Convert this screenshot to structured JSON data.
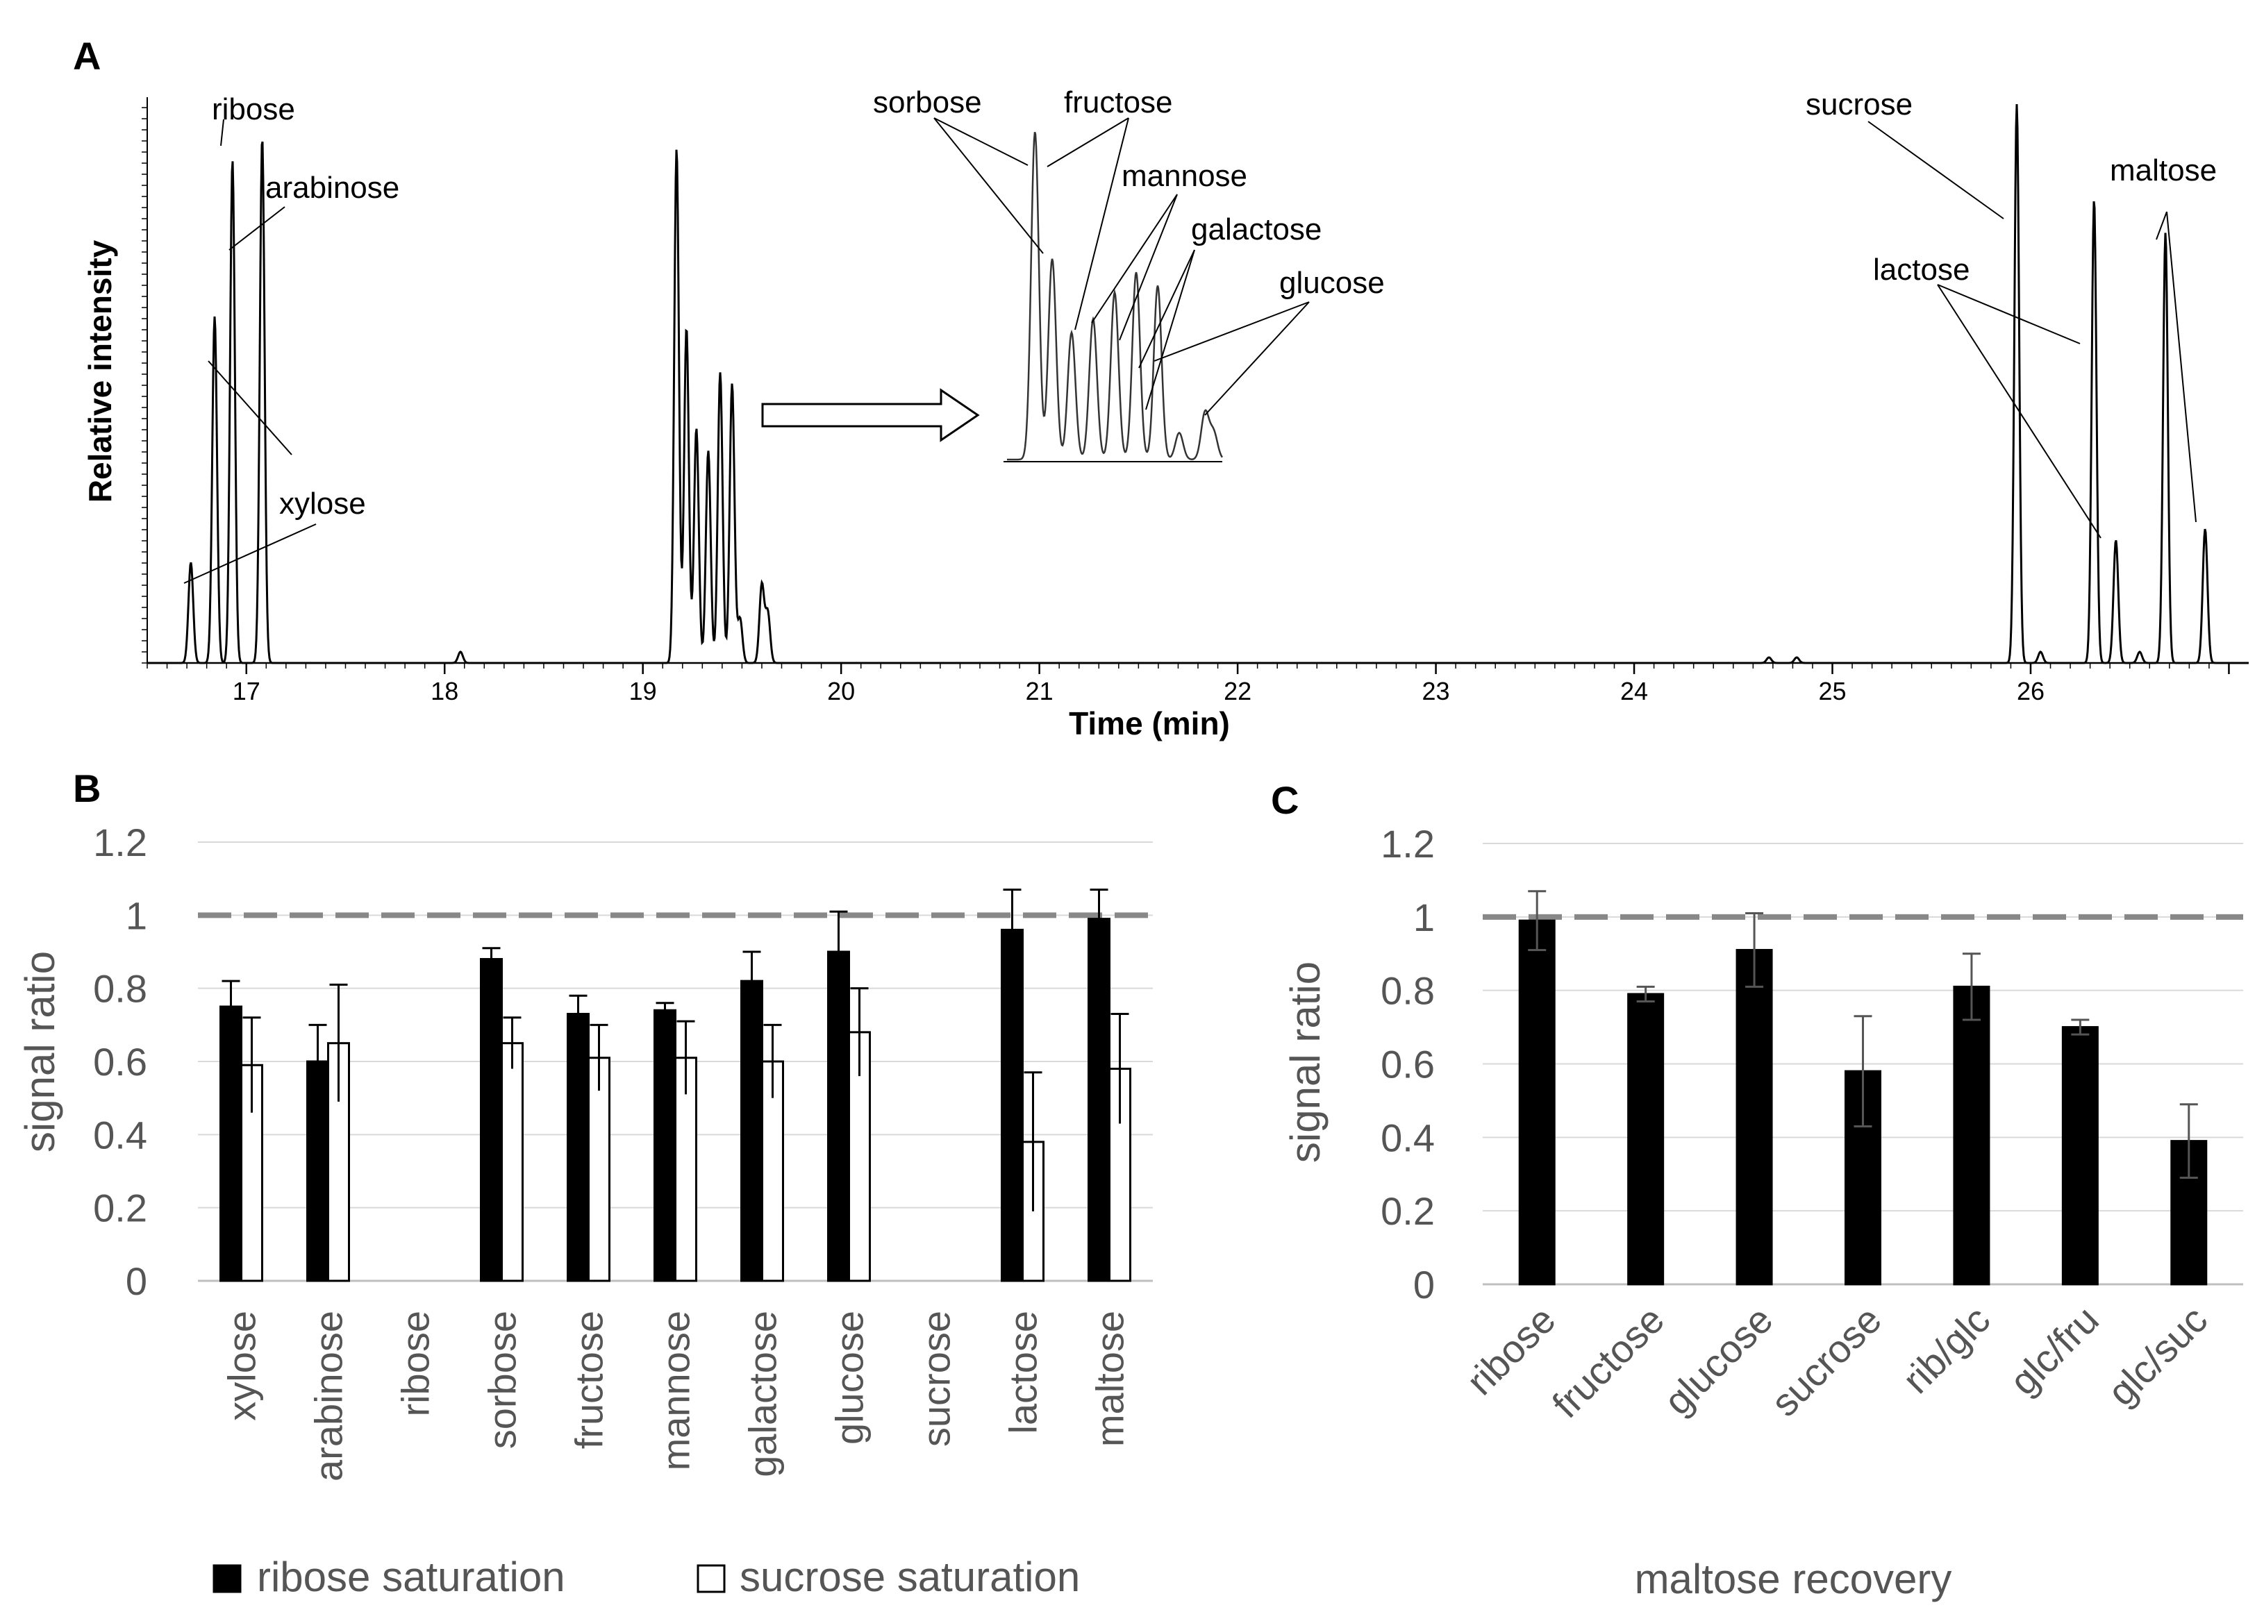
{
  "chart_data": [
    {
      "panel": "A",
      "type": "line",
      "xlabel": "Time (min)",
      "ylabel": "Relative intensity",
      "xlim": [
        16.5,
        27.1
      ],
      "x_ticks": [
        "17",
        "18",
        "19",
        "20",
        "21",
        "22",
        "23",
        "24",
        "25",
        "26"
      ],
      "peaks": [
        {
          "t": 16.72,
          "h": 0.18
        },
        {
          "t": 16.84,
          "h": 0.62
        },
        {
          "t": 16.93,
          "h": 0.9
        },
        {
          "t": 17.08,
          "h": 0.94
        },
        {
          "t": 18.08,
          "h": 0.02
        },
        {
          "t": 19.17,
          "h": 0.92
        },
        {
          "t": 19.22,
          "h": 0.6
        },
        {
          "t": 19.27,
          "h": 0.42
        },
        {
          "t": 19.33,
          "h": 0.38
        },
        {
          "t": 19.39,
          "h": 0.52
        },
        {
          "t": 19.45,
          "h": 0.5
        },
        {
          "t": 19.49,
          "h": 0.08
        },
        {
          "t": 19.6,
          "h": 0.14
        },
        {
          "t": 19.63,
          "h": 0.09
        },
        {
          "t": 24.68,
          "h": 0.01
        },
        {
          "t": 24.82,
          "h": 0.01
        },
        {
          "t": 25.93,
          "h": 1.0
        },
        {
          "t": 26.05,
          "h": 0.02
        },
        {
          "t": 26.32,
          "h": 0.83
        },
        {
          "t": 26.43,
          "h": 0.22
        },
        {
          "t": 26.55,
          "h": 0.02
        },
        {
          "t": 26.68,
          "h": 0.77
        },
        {
          "t": 26.88,
          "h": 0.24
        }
      ],
      "inset_peaks": [
        {
          "t": 0.13,
          "h": 0.98
        },
        {
          "t": 0.21,
          "h": 0.6
        },
        {
          "t": 0.3,
          "h": 0.38
        },
        {
          "t": 0.4,
          "h": 0.42
        },
        {
          "t": 0.5,
          "h": 0.5
        },
        {
          "t": 0.6,
          "h": 0.56
        },
        {
          "t": 0.7,
          "h": 0.52
        },
        {
          "t": 0.8,
          "h": 0.08
        },
        {
          "t": 0.92,
          "h": 0.14
        },
        {
          "t": 0.96,
          "h": 0.08
        }
      ],
      "labels": [
        "ribose",
        "arabinose",
        "xylose",
        "sorbose",
        "fructose",
        "mannose",
        "galactose",
        "glucose",
        "sucrose",
        "lactose",
        "maltose"
      ]
    },
    {
      "panel": "B",
      "type": "bar",
      "ylabel": "signal ratio",
      "ylim": [
        0,
        1.2
      ],
      "y_ticks": [
        "0",
        "0.2",
        "0.4",
        "0.6",
        "0.8",
        "1",
        "1.2"
      ],
      "reference_line": 1,
      "categories": [
        "xylose",
        "arabinose",
        "ribose",
        "sorbose",
        "fructose",
        "mannose",
        "galactose",
        "glucose",
        "sucrose",
        "lactose",
        "maltose"
      ],
      "series": [
        {
          "name": "ribose saturation",
          "color": "#000000",
          "values": [
            0.75,
            0.6,
            null,
            0.88,
            0.73,
            0.74,
            0.82,
            0.9,
            null,
            0.96,
            0.99
          ],
          "errors": [
            0.07,
            0.1,
            null,
            0.03,
            0.05,
            0.02,
            0.08,
            0.11,
            null,
            0.11,
            0.08
          ]
        },
        {
          "name": "sucrose saturation",
          "color": "#ffffff",
          "values": [
            0.59,
            0.65,
            null,
            0.65,
            0.61,
            0.61,
            0.6,
            0.68,
            null,
            0.38,
            0.58
          ],
          "errors": [
            0.13,
            0.16,
            null,
            0.07,
            0.09,
            0.1,
            0.1,
            0.12,
            null,
            0.19,
            0.15
          ]
        }
      ]
    },
    {
      "panel": "C",
      "type": "bar",
      "title": "maltose recovery",
      "ylabel": "signal ratio",
      "ylim": [
        0,
        1.2
      ],
      "y_ticks": [
        "0",
        "0.2",
        "0.4",
        "0.6",
        "0.8",
        "1",
        "1.2"
      ],
      "reference_line": 1,
      "categories": [
        "ribose",
        "fructose",
        "glucose",
        "sucrose",
        "rib/glc",
        "glc/fru",
        "glc/suc"
      ],
      "values": [
        0.99,
        0.79,
        0.91,
        0.58,
        0.81,
        0.7,
        0.39
      ],
      "errors": [
        0.08,
        0.02,
        0.1,
        0.15,
        0.09,
        0.02,
        0.1
      ],
      "color": "#000000"
    }
  ],
  "panels": {
    "a": "A",
    "b": "B",
    "c": "C"
  }
}
